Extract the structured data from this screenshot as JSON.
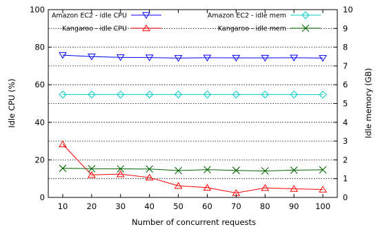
{
  "chart_data": {
    "type": "line",
    "xlabel": "Number of concurrent requests",
    "ylabel": "Idle CPU (%)",
    "y2label": "Idle memory (GB)",
    "x": [
      10,
      20,
      30,
      40,
      50,
      60,
      70,
      80,
      90,
      100
    ],
    "xticks": [
      "10",
      "20",
      "30",
      "40",
      "50",
      "60",
      "70",
      "80",
      "90",
      "100"
    ],
    "ylim": [
      0,
      100
    ],
    "yticks": [
      "0",
      "20",
      "40",
      "60",
      "80",
      "100"
    ],
    "y2lim": [
      0,
      10
    ],
    "y2ticks": [
      "0",
      "1",
      "2",
      "3",
      "4",
      "5",
      "6",
      "7",
      "8",
      "9",
      "10"
    ],
    "grid": "horizontal dotted at each right-axis tick",
    "series": [
      {
        "name": "Amazon EC2 - idle CPU",
        "axis": "left",
        "color": "#0000ff",
        "marker": "triangle-down",
        "values": [
          75.8,
          75.0,
          74.6,
          74.5,
          74.2,
          74.4,
          74.3,
          74.3,
          74.4,
          74.2
        ]
      },
      {
        "name": "Kangaroo - idle CPU",
        "axis": "left",
        "color": "#ff0000",
        "marker": "triangle-up",
        "values": [
          28.3,
          12.0,
          12.4,
          10.6,
          6.2,
          5.2,
          2.4,
          5.1,
          4.6,
          4.2
        ]
      },
      {
        "name": "Amazon EC2 - idle mem",
        "axis": "right",
        "color": "#00cccc",
        "marker": "diamond",
        "values": [
          5.48,
          5.48,
          5.48,
          5.48,
          5.48,
          5.48,
          5.48,
          5.48,
          5.48,
          5.47
        ]
      },
      {
        "name": "Kangaroo - idle mem",
        "axis": "right",
        "color": "#006400",
        "marker": "x",
        "values": [
          1.55,
          1.53,
          1.52,
          1.51,
          1.43,
          1.48,
          1.44,
          1.41,
          1.45,
          1.47
        ]
      }
    ]
  }
}
